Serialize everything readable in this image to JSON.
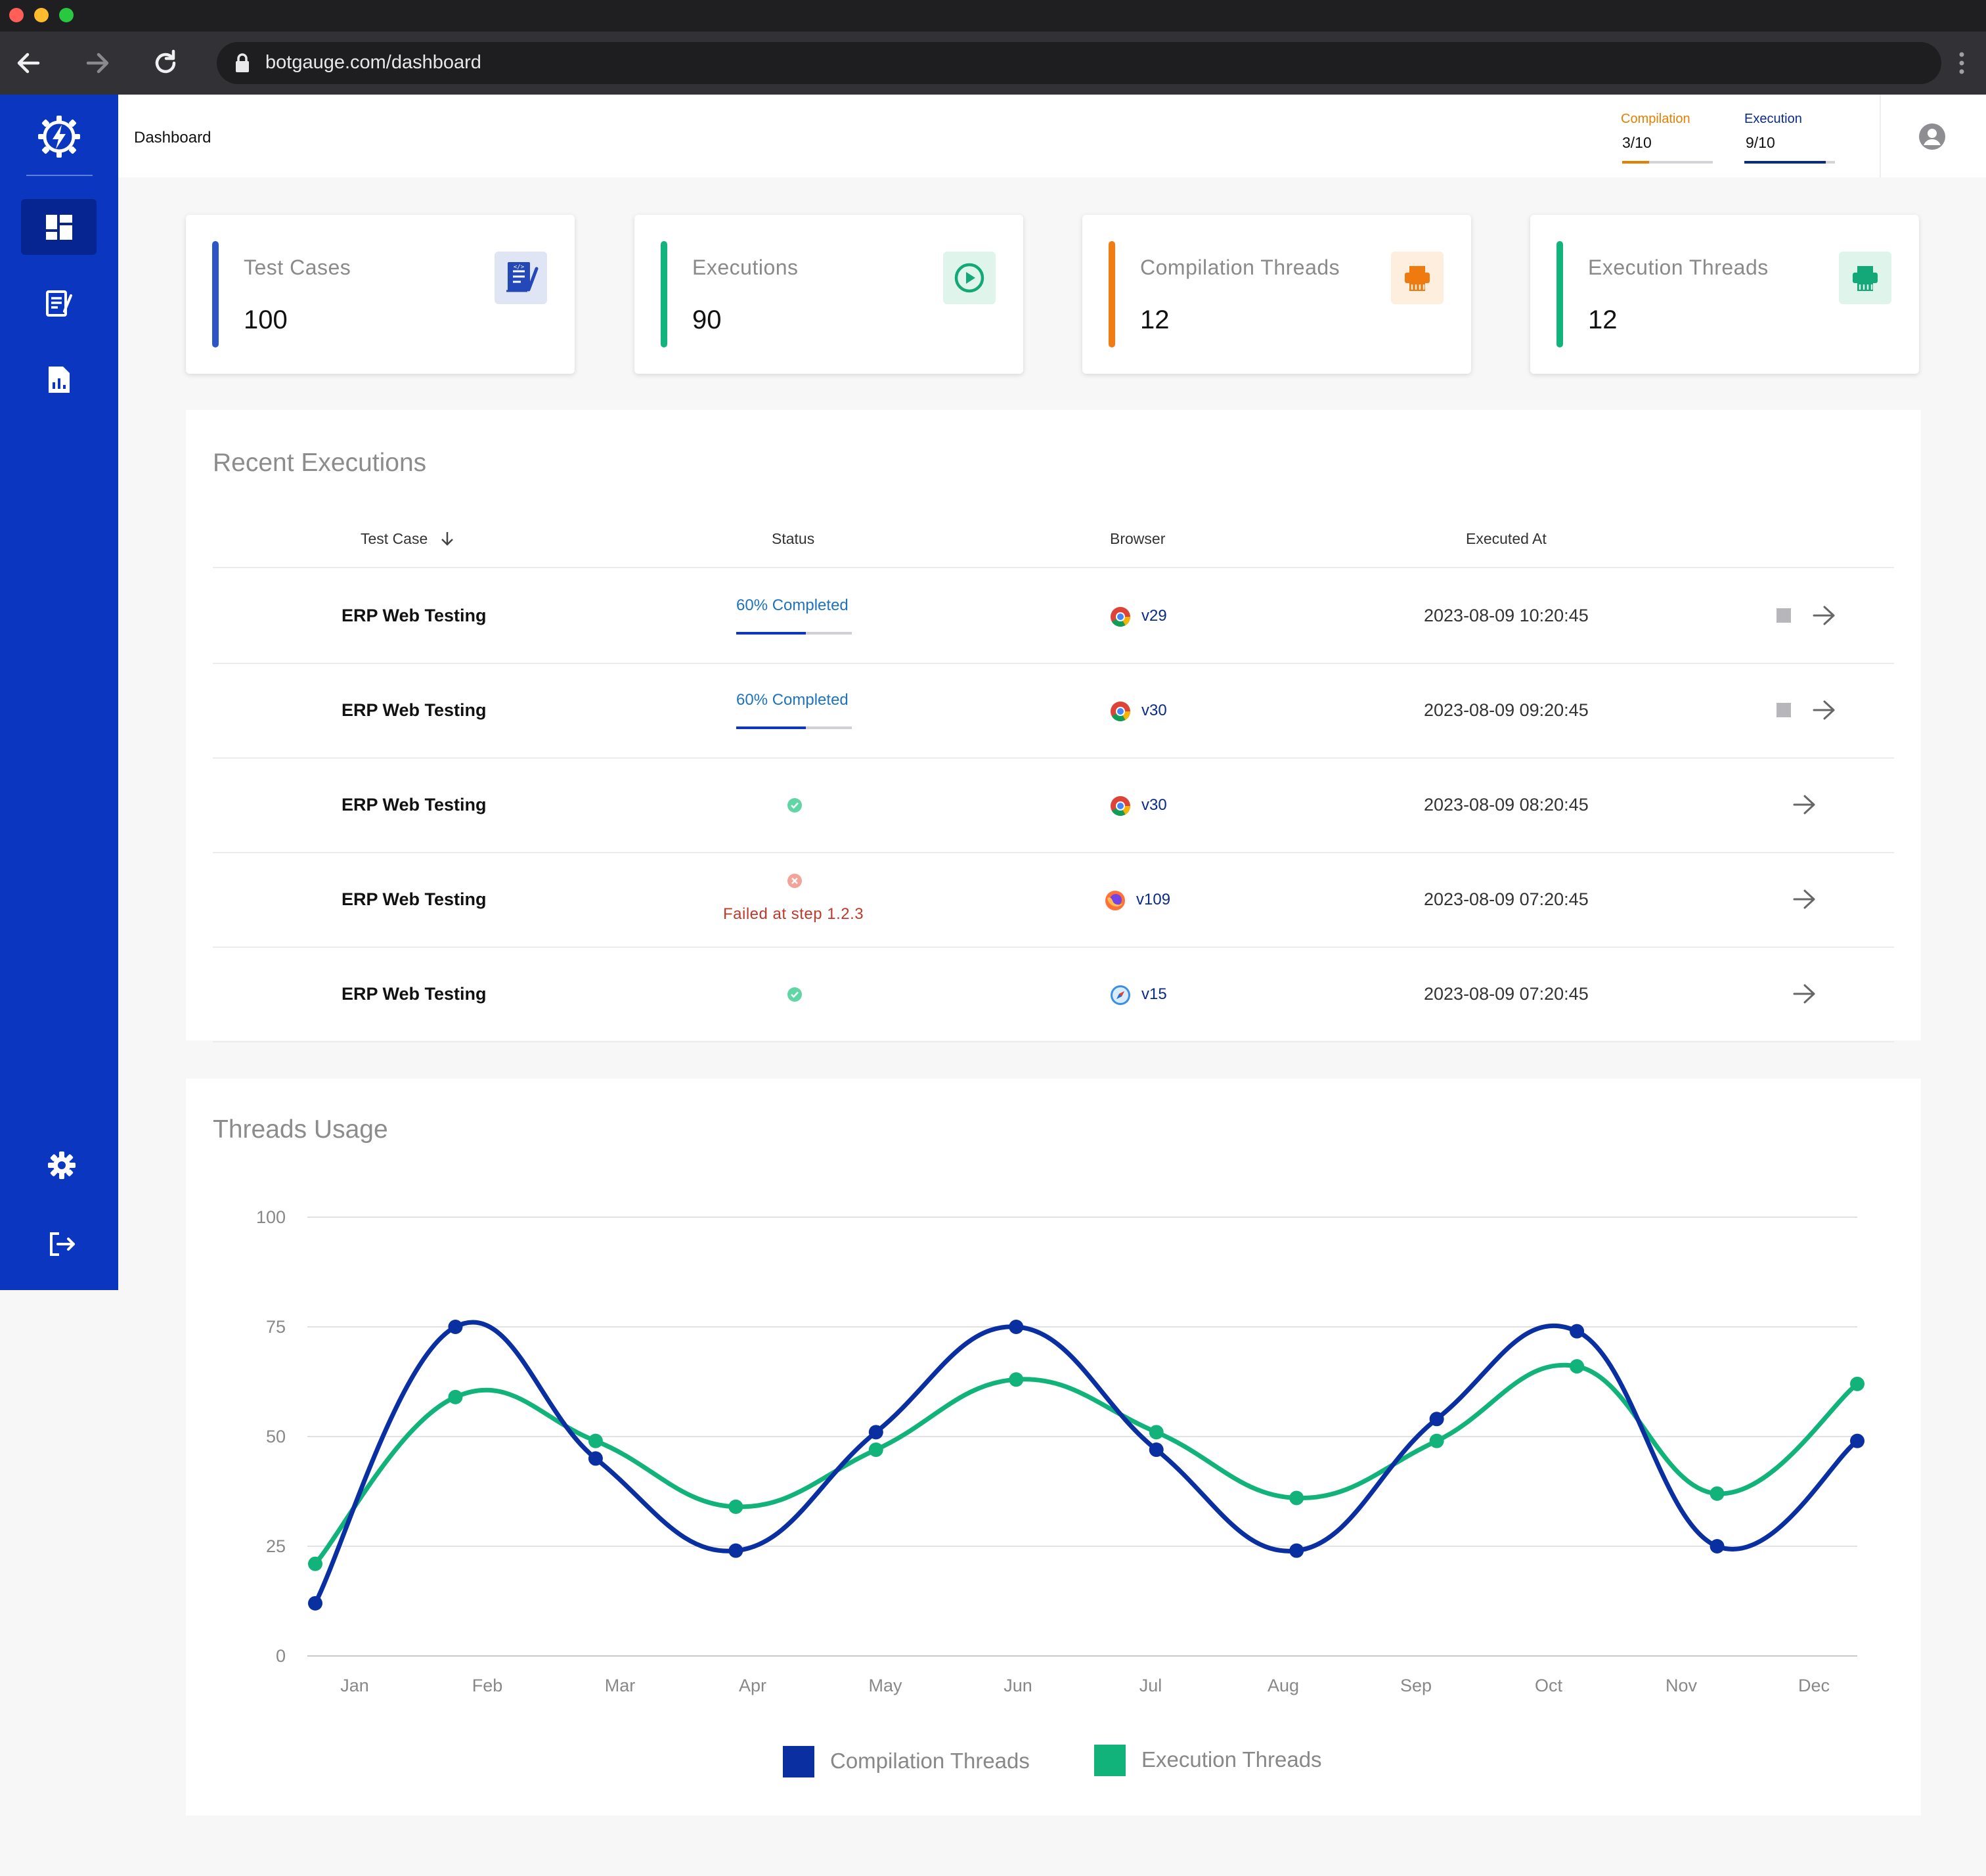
{
  "browser": {
    "url": "botgauge.com/dashboard",
    "dots": [
      "#ff5f57",
      "#febc2e",
      "#28c840"
    ]
  },
  "header": {
    "title": "Dashboard",
    "compilation": {
      "label": "Compilation",
      "value": "3/10",
      "used": 3,
      "total": 10,
      "color": "#e67e00"
    },
    "execution": {
      "label": "Execution",
      "value": "9/10",
      "used": 9,
      "total": 10,
      "color": "#0a2a8a"
    }
  },
  "sidebar": {
    "items": [
      {
        "name": "dashboard",
        "icon": "dashboard-icon",
        "active": true
      },
      {
        "name": "test-cases",
        "icon": "document-code-icon",
        "active": false
      },
      {
        "name": "reports",
        "icon": "report-chart-icon",
        "active": false
      },
      {
        "name": "settings",
        "icon": "gear-icon",
        "active": false
      },
      {
        "name": "logout",
        "icon": "logout-icon",
        "active": false
      }
    ]
  },
  "stats": [
    {
      "label": "Test Cases",
      "value": "100",
      "color": "#2e55c8",
      "icon": "test-case-icon"
    },
    {
      "label": "Executions",
      "value": "90",
      "color": "#10b47c",
      "icon": "play-circle-icon"
    },
    {
      "label": "Compilation Threads",
      "value": "12",
      "color": "#f07c14",
      "icon": "printer-icon"
    },
    {
      "label": "Execution Threads",
      "value": "12",
      "color": "#10b47c",
      "icon": "printer-icon"
    }
  ],
  "recent": {
    "title": "Recent Executions",
    "columns": {
      "test_case": "Test Case",
      "status": "Status",
      "browser": "Browser",
      "executed_at": "Executed At"
    },
    "rows": [
      {
        "name": "ERP Web Testing",
        "status": "progress",
        "status_text": "60% Completed",
        "progress": 0.6,
        "browser": "chrome",
        "version": "v29",
        "executed_at": "2023-08-09 10:20:45",
        "running": true
      },
      {
        "name": "ERP Web Testing",
        "status": "progress",
        "status_text": "60% Completed",
        "progress": 0.6,
        "browser": "chrome",
        "version": "v30",
        "executed_at": "2023-08-09 09:20:45",
        "running": true
      },
      {
        "name": "ERP Web Testing",
        "status": "success",
        "status_text": "",
        "browser": "chrome",
        "version": "v30",
        "executed_at": "2023-08-09 08:20:45",
        "running": false
      },
      {
        "name": "ERP Web Testing",
        "status": "failed",
        "status_text": "Failed at step 1.2.3",
        "browser": "firefox",
        "version": "v109",
        "executed_at": "2023-08-09 07:20:45",
        "running": false
      },
      {
        "name": "ERP Web Testing",
        "status": "success",
        "status_text": "",
        "browser": "safari",
        "version": "v15",
        "executed_at": "2023-08-09 07:20:45",
        "running": false
      }
    ]
  },
  "threads": {
    "title": "Threads Usage"
  },
  "chart_data": {
    "type": "line",
    "title": "Threads Usage",
    "categories": [
      "Jan",
      "Feb",
      "Mar",
      "Apr",
      "May",
      "Jun",
      "Jul",
      "Aug",
      "Sep",
      "Oct",
      "Nov",
      "Dec"
    ],
    "series": [
      {
        "name": "Compilation Threads",
        "color": "#0a2fa0",
        "values": [
          12,
          75,
          45,
          24,
          51,
          75,
          47,
          24,
          54,
          74,
          25,
          49
        ]
      },
      {
        "name": "Execution Threads",
        "color": "#12b37a",
        "values": [
          21,
          59,
          49,
          34,
          47,
          63,
          51,
          36,
          49,
          66,
          37,
          62
        ]
      }
    ],
    "yticks": [
      0,
      25,
      50,
      75,
      100
    ],
    "ylim": [
      0,
      100
    ],
    "grid": true,
    "legend": "bottom"
  }
}
